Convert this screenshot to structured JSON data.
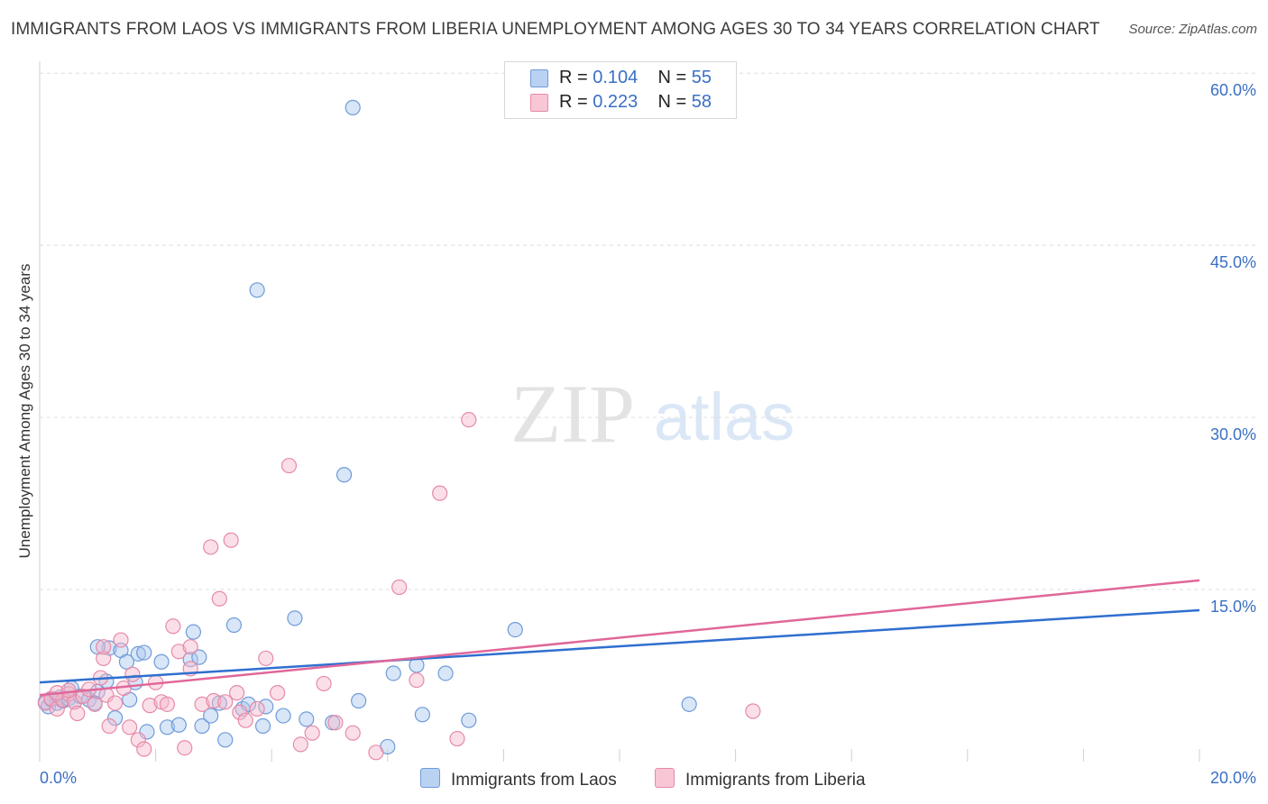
{
  "title": "IMMIGRANTS FROM LAOS VS IMMIGRANTS FROM LIBERIA UNEMPLOYMENT AMONG AGES 30 TO 34 YEARS CORRELATION CHART",
  "source": "Source: ZipAtlas.com",
  "watermark": {
    "zip": "ZIP",
    "atlas": "atlas"
  },
  "legend": {
    "rows": [
      {
        "r_label": "R = ",
        "r_value": "0.104",
        "n_label": "N = ",
        "n_value": "55"
      },
      {
        "r_label": "R = ",
        "r_value": "0.223",
        "n_label": "N = ",
        "n_value": "58"
      }
    ]
  },
  "bottom_legend": [
    "Immigrants from Laos",
    "Immigrants from Liberia"
  ],
  "colors": {
    "laos_fill": "#a9c8ef",
    "laos_stroke": "#6f9bd8",
    "laos_line": "#2f6fcf",
    "liberia_fill": "#f6b8cb",
    "liberia_stroke": "#e68aa8",
    "liberia_line": "#e0679a",
    "grid": "#dedede",
    "tick_text": "#3a6fc4"
  },
  "chart_data": {
    "type": "scatter",
    "title": "IMMIGRANTS FROM LAOS VS IMMIGRANTS FROM LIBERIA UNEMPLOYMENT AMONG AGES 30 TO 34 YEARS CORRELATION CHART",
    "xlabel": "",
    "ylabel": "Unemployment Among Ages 30 to 34 years",
    "xlim": [
      0,
      20
    ],
    "ylim": [
      0,
      62
    ],
    "x_tick_labels": [
      "0.0%",
      "20.0%"
    ],
    "y_ticks": [
      15,
      30,
      45,
      60
    ],
    "y_tick_labels": [
      "15.0%",
      "30.0%",
      "45.0%",
      "60.0%"
    ],
    "grid": true,
    "series": [
      {
        "name": "Immigrants from Laos",
        "R": 0.104,
        "N": 55,
        "trend": {
          "x": [
            0,
            20
          ],
          "y": [
            6.9,
            13.2
          ]
        },
        "points": [
          [
            0.1,
            5.2
          ],
          [
            0.15,
            4.8
          ],
          [
            0.2,
            5.4
          ],
          [
            0.3,
            5.1
          ],
          [
            0.35,
            5.6
          ],
          [
            0.4,
            5.3
          ],
          [
            0.5,
            5.5
          ],
          [
            0.55,
            6.4
          ],
          [
            0.6,
            5.2
          ],
          [
            0.7,
            5.7
          ],
          [
            0.85,
            5.4
          ],
          [
            0.95,
            5.1
          ],
          [
            1.0,
            6.1
          ],
          [
            1.15,
            7.0
          ],
          [
            1.2,
            9.9
          ],
          [
            1.3,
            3.8
          ],
          [
            1.4,
            9.7
          ],
          [
            1.5,
            8.7
          ],
          [
            1.55,
            5.4
          ],
          [
            1.65,
            6.9
          ],
          [
            1.7,
            9.4
          ],
          [
            1.8,
            9.5
          ],
          [
            1.85,
            2.6
          ],
          [
            2.1,
            8.7
          ],
          [
            2.2,
            3.0
          ],
          [
            2.4,
            3.2
          ],
          [
            2.6,
            8.9
          ],
          [
            2.75,
            9.1
          ],
          [
            2.8,
            3.1
          ],
          [
            2.95,
            4.0
          ],
          [
            3.1,
            5.1
          ],
          [
            3.2,
            1.9
          ],
          [
            3.35,
            11.9
          ],
          [
            3.5,
            4.6
          ],
          [
            3.6,
            5.0
          ],
          [
            3.75,
            41.1
          ],
          [
            3.85,
            3.1
          ],
          [
            3.9,
            4.8
          ],
          [
            4.2,
            4.0
          ],
          [
            4.4,
            12.5
          ],
          [
            4.6,
            3.7
          ],
          [
            5.05,
            3.4
          ],
          [
            5.25,
            25.0
          ],
          [
            5.4,
            57.0
          ],
          [
            5.5,
            5.3
          ],
          [
            6.0,
            1.3
          ],
          [
            6.1,
            7.7
          ],
          [
            6.5,
            8.4
          ],
          [
            6.6,
            4.1
          ],
          [
            7.0,
            7.7
          ],
          [
            7.4,
            3.6
          ],
          [
            8.2,
            11.5
          ],
          [
            11.2,
            5.0
          ],
          [
            2.65,
            11.3
          ],
          [
            1.0,
            10.0
          ]
        ]
      },
      {
        "name": "Immigrants from Liberia",
        "R": 0.223,
        "N": 58,
        "trend": {
          "x": [
            0,
            20
          ],
          "y": [
            5.8,
            15.8
          ]
        },
        "points": [
          [
            0.1,
            5.1
          ],
          [
            0.2,
            5.5
          ],
          [
            0.3,
            4.6
          ],
          [
            0.4,
            5.4
          ],
          [
            0.5,
            5.9
          ],
          [
            0.6,
            5.2
          ],
          [
            0.65,
            4.2
          ],
          [
            0.75,
            5.7
          ],
          [
            0.85,
            6.3
          ],
          [
            0.95,
            5.0
          ],
          [
            1.05,
            7.3
          ],
          [
            1.1,
            9.0
          ],
          [
            1.15,
            5.8
          ],
          [
            1.2,
            3.1
          ],
          [
            1.3,
            5.1
          ],
          [
            1.4,
            10.6
          ],
          [
            1.45,
            6.4
          ],
          [
            1.55,
            3.0
          ],
          [
            1.6,
            7.6
          ],
          [
            1.7,
            1.9
          ],
          [
            1.8,
            1.1
          ],
          [
            1.9,
            4.9
          ],
          [
            2.0,
            6.9
          ],
          [
            2.1,
            5.2
          ],
          [
            2.3,
            11.8
          ],
          [
            2.4,
            9.6
          ],
          [
            2.5,
            1.2
          ],
          [
            2.6,
            8.1
          ],
          [
            2.8,
            5.0
          ],
          [
            2.95,
            18.7
          ],
          [
            3.0,
            5.3
          ],
          [
            3.1,
            14.2
          ],
          [
            3.2,
            5.2
          ],
          [
            3.3,
            19.3
          ],
          [
            3.45,
            4.3
          ],
          [
            3.55,
            3.6
          ],
          [
            3.75,
            4.6
          ],
          [
            3.9,
            9.0
          ],
          [
            4.1,
            6.0
          ],
          [
            4.3,
            25.8
          ],
          [
            4.5,
            1.5
          ],
          [
            4.7,
            2.5
          ],
          [
            4.9,
            6.8
          ],
          [
            5.1,
            3.4
          ],
          [
            5.4,
            2.5
          ],
          [
            5.8,
            0.8
          ],
          [
            6.2,
            15.2
          ],
          [
            6.5,
            7.1
          ],
          [
            6.9,
            23.4
          ],
          [
            7.2,
            2.0
          ],
          [
            7.4,
            29.8
          ],
          [
            12.3,
            4.4
          ],
          [
            2.2,
            5.0
          ],
          [
            1.1,
            10.0
          ],
          [
            0.3,
            6.0
          ],
          [
            2.6,
            10.0
          ],
          [
            3.4,
            6.0
          ],
          [
            0.5,
            6.2
          ]
        ]
      }
    ]
  }
}
